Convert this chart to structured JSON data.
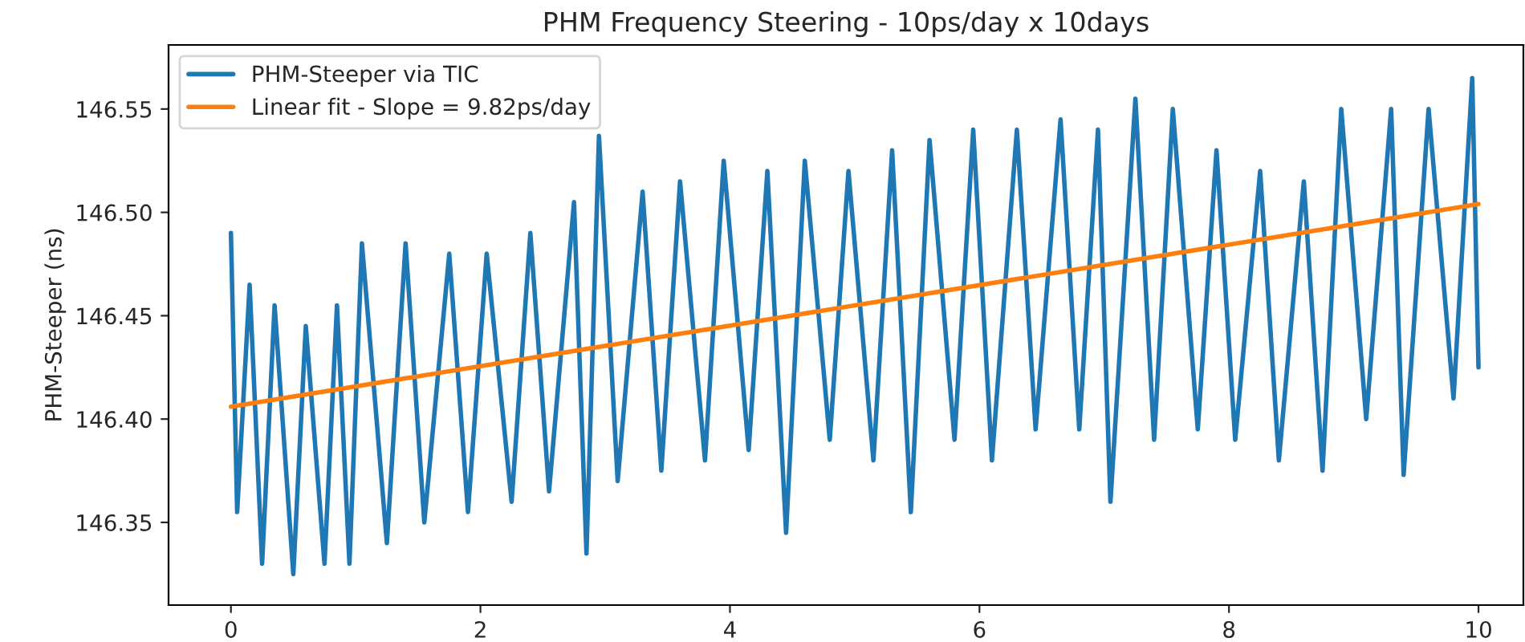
{
  "chart_data": {
    "type": "line",
    "title": "PHM Frequency Steering - 10ps/day x 10days",
    "ylabel": "PHM-Steeper (ns)",
    "series": [
      {
        "name": "PHM-Steeper via TIC",
        "color": "#1f77b4",
        "x": [
          0.0,
          0.05,
          0.15,
          0.25,
          0.35,
          0.5,
          0.6,
          0.75,
          0.85,
          0.95,
          1.05,
          1.25,
          1.4,
          1.55,
          1.75,
          1.9,
          2.05,
          2.25,
          2.4,
          2.55,
          2.75,
          2.85,
          2.95,
          3.1,
          3.3,
          3.45,
          3.6,
          3.8,
          3.95,
          4.15,
          4.3,
          4.45,
          4.6,
          4.8,
          4.95,
          5.15,
          5.3,
          5.45,
          5.6,
          5.8,
          5.95,
          6.1,
          6.3,
          6.45,
          6.65,
          6.8,
          6.95,
          7.05,
          7.25,
          7.4,
          7.55,
          7.75,
          7.9,
          8.05,
          8.25,
          8.4,
          8.6,
          8.75,
          8.9,
          9.1,
          9.3,
          9.4,
          9.6,
          9.8,
          9.95,
          10.0
        ],
        "values": [
          146.49,
          146.355,
          146.465,
          146.33,
          146.455,
          146.325,
          146.445,
          146.33,
          146.455,
          146.33,
          146.485,
          146.34,
          146.485,
          146.35,
          146.48,
          146.355,
          146.48,
          146.36,
          146.49,
          146.365,
          146.505,
          146.335,
          146.537,
          146.37,
          146.51,
          146.375,
          146.515,
          146.38,
          146.525,
          146.385,
          146.52,
          146.345,
          146.525,
          146.39,
          146.52,
          146.38,
          146.53,
          146.355,
          146.535,
          146.39,
          146.54,
          146.38,
          146.54,
          146.395,
          146.545,
          146.395,
          146.54,
          146.36,
          146.555,
          146.39,
          146.55,
          146.395,
          146.53,
          146.39,
          146.52,
          146.38,
          146.515,
          146.375,
          146.55,
          146.4,
          146.55,
          146.373,
          146.55,
          146.41,
          146.565,
          146.425
        ]
      },
      {
        "name": "Linear fit - Slope = 9.82ps/day",
        "color": "#ff7f0e",
        "x": [
          0,
          10
        ],
        "values": [
          146.406,
          146.504
        ]
      }
    ],
    "xlim": [
      -0.5,
      10.36
    ],
    "ylim": [
      146.31,
      146.581
    ],
    "xticks": [
      0,
      2,
      4,
      6,
      8,
      10
    ],
    "yticks": [
      146.35,
      {
        "value": 146.4,
        "label": "146.40"
      },
      146.45,
      {
        "value": 146.5,
        "label": "146.50"
      },
      146.55
    ],
    "grid": false,
    "legend": "top left"
  }
}
